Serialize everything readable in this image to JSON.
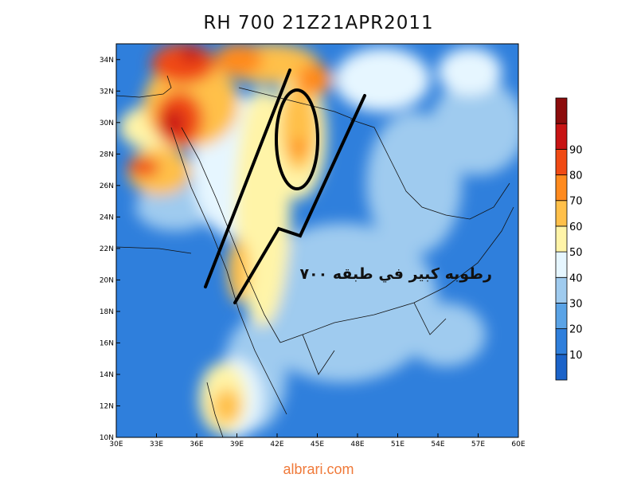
{
  "title": "RH 700 21Z21APR2011",
  "footer_text": "albrari.com",
  "annotation": "رطوبه كبير في طبقه ٧٠٠",
  "map": {
    "lon_range": [
      30,
      60
    ],
    "lat_range": [
      10,
      35
    ],
    "x_ticks": [
      "30E",
      "33E",
      "36E",
      "39E",
      "42E",
      "45E",
      "48E",
      "51E",
      "54E",
      "57E",
      "60E"
    ],
    "y_ticks": [
      "10N",
      "12N",
      "14N",
      "16N",
      "18N",
      "20N",
      "22N",
      "24N",
      "26N",
      "28N",
      "30N",
      "32N",
      "34N"
    ]
  },
  "colorbar": {
    "labels": [
      "10",
      "20",
      "30",
      "40",
      "50",
      "60",
      "70",
      "80",
      "90"
    ],
    "colors": [
      "#1b63c9",
      "#2f7fdc",
      "#5aa3e6",
      "#9fcbef",
      "#e6f6ff",
      "#fff4a8",
      "#ffc04a",
      "#ff8a1e",
      "#f04a14",
      "#c81414",
      "#8c0c0c"
    ]
  }
}
